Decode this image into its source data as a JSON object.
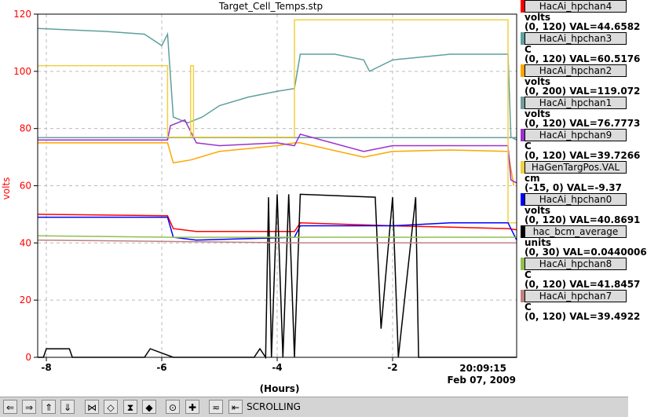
{
  "chart_data": {
    "type": "line",
    "title": "Target_Cell_Temps.stp",
    "xlabel": "(Hours)",
    "ylabel": "volts",
    "ylim": [
      0,
      120
    ],
    "xlim": [
      -8.15,
      0.15
    ],
    "xticks": [
      -8,
      -6,
      -4,
      -2
    ],
    "yticks": [
      0,
      20,
      40,
      60,
      80,
      100,
      120
    ],
    "x_time_label": "20:09:15",
    "x_date_label": "Feb 07, 2009",
    "grid": true,
    "series": [
      {
        "name": "HacAi_hpchan4",
        "color": "#ff0000",
        "units": "volts",
        "range": "(0, 120)",
        "val": "VAL=44.6582",
        "x": [
          -8.15,
          -5.9,
          -5.8,
          -5.4,
          -3.7,
          -3.6,
          -2.0,
          -1.0,
          0.0,
          0.15
        ],
        "y": [
          50,
          49.5,
          45,
          44,
          44,
          47,
          46,
          45.5,
          45,
          44.6
        ]
      },
      {
        "name": "HacAi_hpchan3",
        "color": "#5f9f9f",
        "units": "C",
        "range": "(0, 120)",
        "val": "VAL=60.5176",
        "x": [
          -8.15,
          -7.0,
          -6.3,
          -6.0,
          -5.9,
          -5.8,
          -5.55,
          -5.3,
          -5.0,
          -4.5,
          -4.0,
          -3.7,
          -3.6,
          -3.0,
          -2.5,
          -2.4,
          -2.0,
          -1.0,
          0.0,
          0.05,
          0.15
        ],
        "y": [
          115,
          114,
          113,
          109,
          113,
          84,
          82,
          84,
          88,
          91,
          93,
          94,
          106,
          106,
          104,
          100,
          104,
          106,
          106,
          77,
          76
        ]
      },
      {
        "name": "HacAi_hpchan2",
        "color": "#ffa500",
        "units": "volts",
        "range": "(0, 200)",
        "val": "VAL=119.072",
        "x": [
          -8.15,
          -5.9,
          -5.8,
          -5.5,
          -5.0,
          -4.5,
          -4.0,
          -3.7,
          -3.6,
          -2.5,
          -2.0,
          -1.0,
          0.0,
          0.1
        ],
        "y": [
          75,
          75,
          68,
          69,
          72,
          73,
          74,
          75,
          75,
          70,
          72,
          72.5,
          72,
          60
        ]
      },
      {
        "name": "HacAi_hpchan1",
        "color": "#6e9e9e",
        "units": "volts",
        "range": "(0, 120)",
        "val": "VAL=76.7773",
        "x": [
          -8.15,
          0.15
        ],
        "y": [
          76.8,
          76.8
        ]
      },
      {
        "name": "HacAi_hpchan9",
        "color": "#9a32cd",
        "units": "C",
        "range": "(0, 120)",
        "val": "VAL=39.7266",
        "x": [
          -8.15,
          -5.9,
          -5.85,
          -5.6,
          -5.4,
          -5.0,
          -4.0,
          -3.7,
          -3.6,
          -2.5,
          -2.0,
          -1.0,
          0.0,
          0.05,
          0.15
        ],
        "y": [
          76,
          76,
          81,
          83,
          75,
          74,
          75,
          74,
          78,
          72,
          74,
          74,
          74,
          62,
          61
        ]
      },
      {
        "name": "HaGenTargPos.VAL",
        "color": "#f0d040",
        "units": "cm",
        "range": "(-15, 0)",
        "val": "VAL=-9.37",
        "x": [
          -8.15,
          -5.9,
          -5.9,
          -5.5,
          -5.5,
          -5.45,
          -5.45,
          -5.4,
          -5.4,
          -3.7,
          -3.7,
          0.0,
          0.0,
          0.15
        ],
        "y": [
          102,
          102,
          77,
          77,
          102,
          102,
          77,
          77,
          77,
          77,
          118,
          118,
          47,
          47
        ]
      },
      {
        "name": "HacAi_hpchan0",
        "color": "#0000ff",
        "units": "volts",
        "range": "(0, 120)",
        "val": "VAL=40.8691",
        "x": [
          -8.15,
          -5.9,
          -5.8,
          -5.4,
          -3.7,
          -3.6,
          -2.0,
          -1.0,
          0.0,
          0.15
        ],
        "y": [
          49,
          49,
          42,
          41,
          42,
          46,
          46,
          47,
          47,
          41
        ]
      },
      {
        "name": "hac_bcm_average",
        "color": "#000000",
        "units": "units",
        "range": "(0, 30)",
        "val": "VAL=0.0440006",
        "x": [
          -8.15,
          -8.05,
          -8.0,
          -7.6,
          -7.55,
          -6.3,
          -6.2,
          -5.8,
          -4.4,
          -4.3,
          -4.2,
          -4.15,
          -4.1,
          -4.0,
          -3.9,
          -3.8,
          -3.7,
          -3.6,
          -2.3,
          -2.2,
          -2.0,
          -1.9,
          -1.6,
          -1.55,
          -1.5,
          0.15
        ],
        "y": [
          0,
          0,
          3,
          3,
          0,
          0,
          3,
          0,
          0,
          3,
          0,
          56,
          0,
          57,
          0,
          57,
          0,
          57,
          56,
          10,
          56,
          0,
          56,
          0,
          0,
          0
        ]
      },
      {
        "name": "HacAi_hpchan8",
        "color": "#90c050",
        "units": "C",
        "range": "(0, 120)",
        "val": "VAL=41.8457",
        "x": [
          -8.15,
          -5.8,
          -3.7,
          0.15
        ],
        "y": [
          42.5,
          42,
          42,
          42
        ]
      },
      {
        "name": "HacAi_hpchan7",
        "color": "#c08080",
        "units": "C",
        "range": "(0, 120)",
        "val": "VAL=39.4922",
        "x": [
          -8.15,
          -5.8,
          -3.7,
          0.15
        ],
        "y": [
          41,
          40.5,
          40,
          40
        ]
      }
    ]
  },
  "toolbar": {
    "status": "SCROLLING",
    "buttons": [
      {
        "name": "scroll-left-button",
        "glyph": "⇐"
      },
      {
        "name": "scroll-right-button",
        "glyph": "⇒"
      },
      {
        "name": "scroll-up-button",
        "glyph": "⇑"
      },
      {
        "name": "scroll-down-button",
        "glyph": "⇓"
      },
      {
        "name": "compress-x-button",
        "glyph": "⋈"
      },
      {
        "name": "expand-x-button",
        "glyph": "◇"
      },
      {
        "name": "compress-y-button",
        "glyph": "⧗"
      },
      {
        "name": "expand-y-button",
        "glyph": "◆"
      },
      {
        "name": "zoom-button",
        "glyph": "⊙"
      },
      {
        "name": "add-button",
        "glyph": "✚"
      },
      {
        "name": "autoscale-button",
        "glyph": "≂"
      },
      {
        "name": "scroll-mode-button",
        "glyph": "⇤"
      }
    ]
  }
}
